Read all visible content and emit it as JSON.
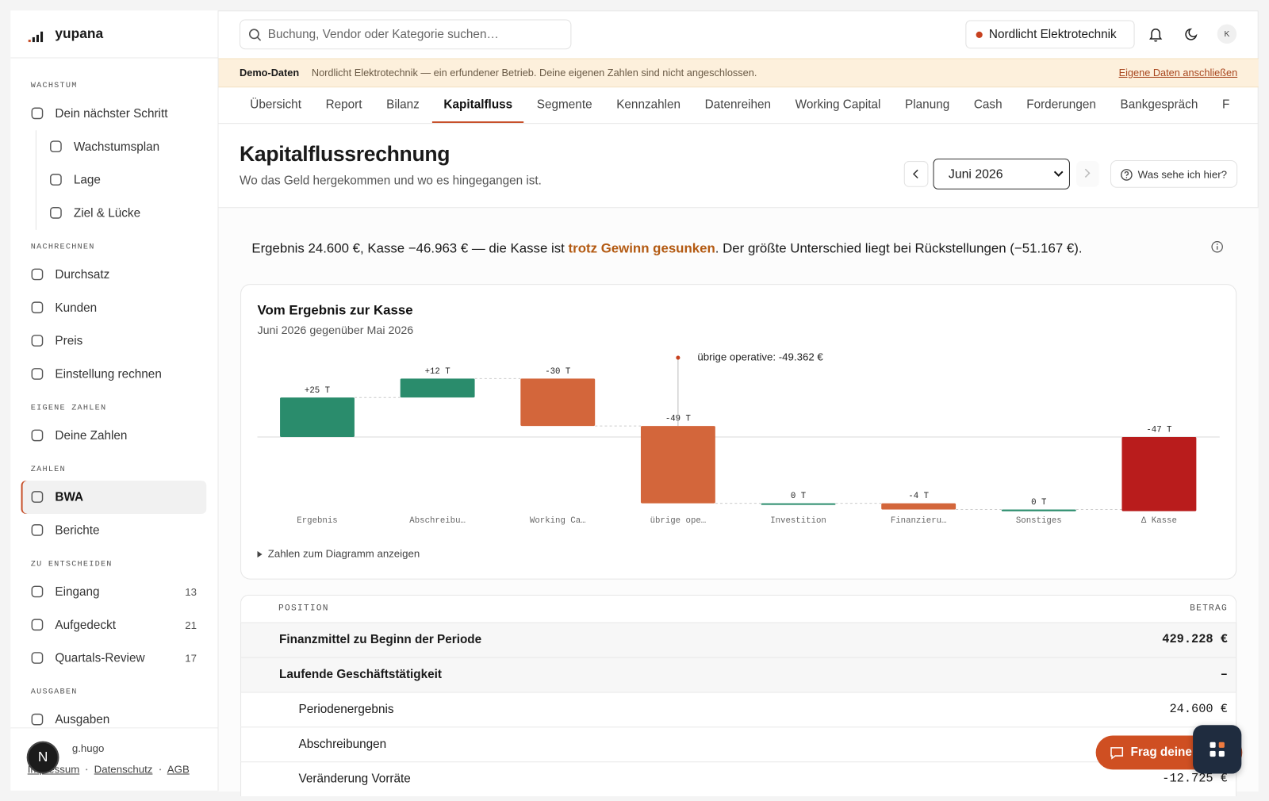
{
  "sidebar": {
    "brand": "yupana",
    "sections": [
      {
        "title": "WACHSTUM",
        "items": [
          {
            "label": "Dein nächster Schritt",
            "children": [
              {
                "label": "Wachstumsplan"
              },
              {
                "label": "Lage"
              },
              {
                "label": "Ziel & Lücke"
              }
            ]
          }
        ]
      },
      {
        "title": "NACHRECHNEN",
        "items": [
          {
            "label": "Durchsatz"
          },
          {
            "label": "Kunden"
          },
          {
            "label": "Preis"
          },
          {
            "label": "Einstellung rechnen"
          }
        ]
      },
      {
        "title": "EIGENE ZAHLEN",
        "items": [
          {
            "label": "Deine Zahlen"
          }
        ]
      },
      {
        "title": "ZAHLEN",
        "items": [
          {
            "label": "BWA",
            "active": true
          },
          {
            "label": "Berichte"
          }
        ]
      },
      {
        "title": "ZU ENTSCHEIDEN",
        "items": [
          {
            "label": "Eingang",
            "badge": "13"
          },
          {
            "label": "Aufgedeckt",
            "badge": "21"
          },
          {
            "label": "Quartals-Review",
            "badge": "17"
          }
        ]
      },
      {
        "title": "AUSGABEN",
        "items": [
          {
            "label": "Ausgaben"
          }
        ]
      }
    ],
    "footer": {
      "user": "g.hugo",
      "avatar": "N",
      "links": [
        "Impressum",
        "Datenschutz",
        "AGB"
      ]
    }
  },
  "header": {
    "search_placeholder": "Buchung, Vendor oder Kategorie suchen…",
    "company": "Nordlicht Elektrotechnik",
    "avatar": "K"
  },
  "banner": {
    "label": "Demo-Daten",
    "text": "Nordlicht Elektrotechnik — ein erfundener Betrieb. Deine eigenen Zahlen sind nicht angeschlossen.",
    "link": "Eigene Daten anschließen"
  },
  "tabs": {
    "items": [
      "Übersicht",
      "Report",
      "Bilanz",
      "Kapitalfluss",
      "Segmente",
      "Kennzahlen",
      "Datenreihen",
      "Working Capital",
      "Planung",
      "Cash",
      "Forderungen",
      "Bankgespräch",
      "F"
    ],
    "active": 3
  },
  "page": {
    "title": "Kapitalflussrechnung",
    "subtitle": "Wo das Geld hergekommen und wo es hingegangen ist.",
    "period": "Juni 2026",
    "help": "Was sehe ich hier?"
  },
  "summary": {
    "before": "Ergebnis 24.600 €, Kasse −46.963 € — die Kasse ist ",
    "highlight": "trotz Gewinn gesunken",
    "after": ". Der größte Unterschied liegt bei Rückstellungen (−51.167 €)."
  },
  "chart_data": {
    "type": "waterfall",
    "title": "Vom Ergebnis zur Kasse",
    "subtitle": "Juni 2026 gegenüber Mai 2026",
    "categories": [
      "Ergebnis",
      "Abschreibu…",
      "Working Ca…",
      "übrige ope…",
      "Investition",
      "Finanzieru…",
      "Sonstiges",
      "Δ Kasse"
    ],
    "values": [
      25,
      12,
      -30,
      -49,
      0,
      -4,
      0,
      -47
    ],
    "value_labels": [
      "+25 T",
      "+12 T",
      "-30 T",
      "-49 T",
      "0 T",
      "-4 T",
      "0 T",
      "-47 T"
    ],
    "measure": [
      "relative",
      "relative",
      "relative",
      "relative",
      "relative",
      "relative",
      "relative",
      "total"
    ],
    "colors": {
      "increase": "#2a8c6c",
      "decrease": "#d3663b",
      "total": "#b91c1c"
    },
    "annotation": {
      "text": "übrige operative: -49.362 €",
      "category": 3
    },
    "details_toggle": "Zahlen zum Diagramm anzeigen"
  },
  "table": {
    "columns": [
      "POSITION",
      "BETRAG"
    ],
    "rows": [
      {
        "label": "Finanzmittel zu Beginn der Periode",
        "value": "429.228 €",
        "kind": "total"
      },
      {
        "label": "Laufende Geschäftstätigkeit",
        "value": "–",
        "kind": "section"
      },
      {
        "label": "Periodenergebnis",
        "value": "24.600 €",
        "kind": "item"
      },
      {
        "label": "Abschreibungen",
        "kind": "item"
      },
      {
        "label": "Veränderung Vorräte",
        "value": "-12.725 €",
        "kind": "item"
      }
    ]
  },
  "chat": {
    "label": "Frag deine"
  }
}
